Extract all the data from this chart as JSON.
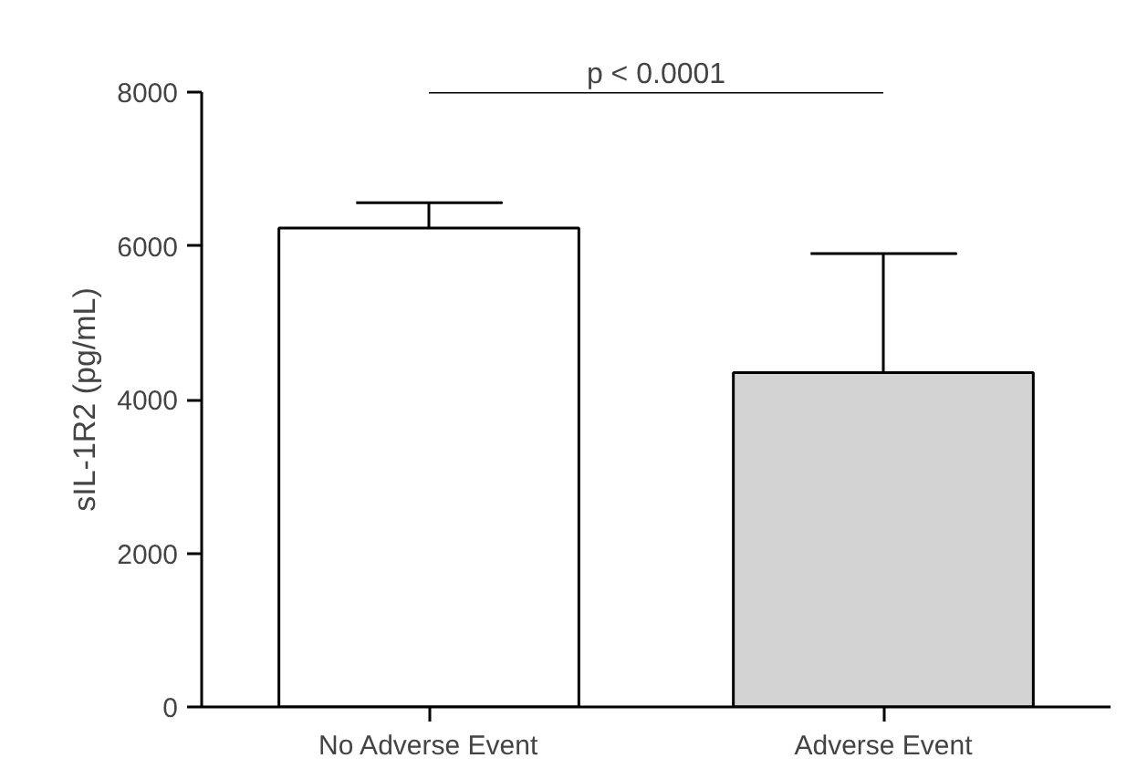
{
  "chart_data": {
    "type": "bar",
    "ylabel": "sIL-1R2 (pg/mL)",
    "categories": [
      "No Adverse Event",
      "Adverse Event"
    ],
    "values": [
      6230,
      4350
    ],
    "colors": [
      "#ffffff",
      "#d3d3d3"
    ],
    "errors": [
      [
        6230,
        6560
      ],
      [
        4350,
        5900
      ]
    ],
    "ylim": [
      0,
      8000
    ],
    "yticks": [
      0,
      2000,
      4000,
      6000,
      8000
    ],
    "grid": false,
    "annotations": [
      "p < 0.0001"
    ]
  }
}
